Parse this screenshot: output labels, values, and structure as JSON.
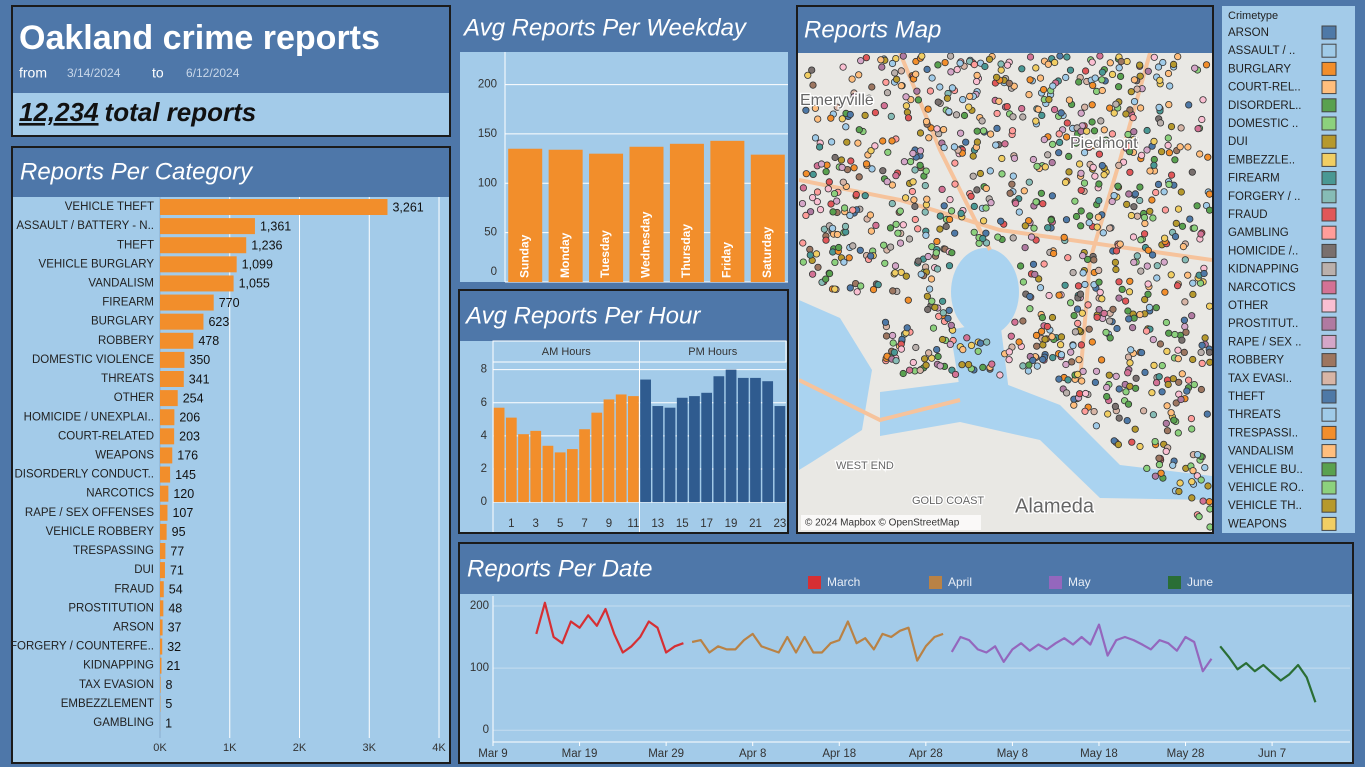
{
  "header": {
    "title": "Oakland crime reports",
    "from_label": "from",
    "from_date": "3/14/2024",
    "to_label": "to",
    "to_date": "6/12/2024",
    "total": "12,234",
    "total_label": "total reports"
  },
  "chart_data": [
    {
      "type": "hbar",
      "title": "Reports Per Category",
      "color": "#f28e2b",
      "categories": [
        "VEHICLE THEFT",
        "ASSAULT / BATTERY - N..",
        "THEFT",
        "VEHICLE BURGLARY",
        "VANDALISM",
        "FIREARM",
        "BURGLARY",
        "ROBBERY",
        "DOMESTIC VIOLENCE",
        "THREATS",
        "OTHER",
        "HOMICIDE / UNEXPLAI..",
        "COURT-RELATED",
        "WEAPONS",
        "DISORDERLY CONDUCT..",
        "NARCOTICS",
        "RAPE / SEX OFFENSES",
        "VEHICLE ROBBERY",
        "TRESPASSING",
        "DUI",
        "FRAUD",
        "PROSTITUTION",
        "ARSON",
        "FORGERY / COUNTERFE..",
        "KIDNAPPING",
        "TAX EVASION",
        "EMBEZZLEMENT",
        "GAMBLING"
      ],
      "values": [
        3261,
        1361,
        1236,
        1099,
        1055,
        770,
        623,
        478,
        350,
        341,
        254,
        206,
        203,
        176,
        145,
        120,
        107,
        95,
        77,
        71,
        54,
        48,
        37,
        32,
        21,
        8,
        5,
        1
      ],
      "value_labels": [
        "3,261",
        "1,361",
        "1,236",
        "1,099",
        "1,055",
        "770",
        "623",
        "478",
        "350",
        "341",
        "254",
        "206",
        "203",
        "176",
        "145",
        "120",
        "107",
        "95",
        "77",
        "71",
        "54",
        "48",
        "37",
        "32",
        "21",
        "8",
        "5",
        "1"
      ],
      "xlim": [
        0,
        4100
      ],
      "xticks": [
        {
          "value": 0,
          "label": "0K"
        },
        {
          "value": 1000,
          "label": "1K"
        },
        {
          "value": 2000,
          "label": "2K"
        },
        {
          "value": 3000,
          "label": "3K"
        },
        {
          "value": 4000,
          "label": "4K"
        }
      ],
      "grid": true
    },
    {
      "type": "bar",
      "title": "Avg Reports Per Weekday",
      "color": "#f28e2b",
      "categories": [
        "Sunday",
        "Monday",
        "Tuesday",
        "Wednesday",
        "Thursday",
        "Friday",
        "Saturday"
      ],
      "values": [
        135,
        134,
        130,
        137,
        140,
        143,
        129
      ],
      "ylim": [
        0,
        233
      ],
      "yticks": [
        0,
        50,
        100,
        150,
        200
      ],
      "grid": true
    },
    {
      "type": "faceted_bar",
      "title": "Avg Reports Per Hour",
      "ylim": [
        -0.6,
        8.4
      ],
      "yticks": [
        0,
        2,
        4,
        6,
        8
      ],
      "grid": true,
      "series": [
        {
          "name": "AM Hours",
          "color": "#f28e2b",
          "categories": [
            null,
            1,
            null,
            3,
            null,
            5,
            null,
            7,
            null,
            9,
            null,
            11
          ],
          "values": [
            5.7,
            5.1,
            4.1,
            4.3,
            3.4,
            3.0,
            3.2,
            4.4,
            5.4,
            6.2,
            6.5,
            6.4
          ]
        },
        {
          "name": "PM Hours",
          "color": "#2f5b8f",
          "categories": [
            null,
            13,
            null,
            15,
            null,
            17,
            null,
            19,
            null,
            21,
            null,
            23
          ],
          "values": [
            7.4,
            5.8,
            5.7,
            6.3,
            6.4,
            6.6,
            7.6,
            8.0,
            7.5,
            7.5,
            7.3,
            5.8
          ]
        }
      ]
    },
    {
      "type": "map",
      "title": "Reports Map",
      "place_labels": [
        "Emeryville",
        "Piedmont",
        "WEST END",
        "GOLD COAST",
        "Alameda"
      ],
      "attribution": "© 2024 Mapbox © OpenStreetMap",
      "legend_title": "Crimetype",
      "legend": [
        {
          "name": "ARSON",
          "color": "#4e79a7"
        },
        {
          "name": "ASSAULT / ..",
          "color": "#a0cbe8"
        },
        {
          "name": "BURGLARY",
          "color": "#f28e2b"
        },
        {
          "name": "COURT-REL..",
          "color": "#ffbe7d"
        },
        {
          "name": "DISORDERL..",
          "color": "#59a14f"
        },
        {
          "name": "DOMESTIC ..",
          "color": "#8cd17d"
        },
        {
          "name": "DUI",
          "color": "#b6992d"
        },
        {
          "name": "EMBEZZLE..",
          "color": "#f1ce63"
        },
        {
          "name": "FIREARM",
          "color": "#499894"
        },
        {
          "name": "FORGERY / ..",
          "color": "#86bcb6"
        },
        {
          "name": "FRAUD",
          "color": "#e15759"
        },
        {
          "name": "GAMBLING",
          "color": "#ff9d9a"
        },
        {
          "name": "HOMICIDE /..",
          "color": "#79706e"
        },
        {
          "name": "KIDNAPPING",
          "color": "#bab0ac"
        },
        {
          "name": "NARCOTICS",
          "color": "#d37295"
        },
        {
          "name": "OTHER",
          "color": "#fabfd2"
        },
        {
          "name": "PROSTITUT..",
          "color": "#b07aa1"
        },
        {
          "name": "RAPE / SEX ..",
          "color": "#d4a6c8"
        },
        {
          "name": "ROBBERY",
          "color": "#9d7660"
        },
        {
          "name": "TAX EVASI..",
          "color": "#d7b5a6"
        },
        {
          "name": "THEFT",
          "color": "#4e79a7"
        },
        {
          "name": "THREATS",
          "color": "#a0cbe8"
        },
        {
          "name": "TRESPASSI..",
          "color": "#f28e2b"
        },
        {
          "name": "VANDALISM",
          "color": "#ffbe7d"
        },
        {
          "name": "VEHICLE BU..",
          "color": "#59a14f"
        },
        {
          "name": "VEHICLE RO..",
          "color": "#8cd17d"
        },
        {
          "name": "VEHICLE TH..",
          "color": "#b6992d"
        },
        {
          "name": "WEAPONS",
          "color": "#f1ce63"
        }
      ]
    },
    {
      "type": "line",
      "title": "Reports Per Date",
      "xlim": [
        "03-09",
        "06-16"
      ],
      "ylim": [
        -19,
        216
      ],
      "yticks": [
        0,
        100,
        200
      ],
      "grid": true,
      "xticks": [
        {
          "value": "03-09",
          "label": "Mar 9"
        },
        {
          "value": "03-19",
          "label": "Mar 19"
        },
        {
          "value": "03-29",
          "label": "Mar 29"
        },
        {
          "value": "04-08",
          "label": "Apr 8"
        },
        {
          "value": "04-18",
          "label": "Apr 18"
        },
        {
          "value": "04-28",
          "label": "Apr 28"
        },
        {
          "value": "05-08",
          "label": "May 8"
        },
        {
          "value": "05-18",
          "label": "May 18"
        },
        {
          "value": "05-28",
          "label": "May 28"
        },
        {
          "value": "06-07",
          "label": "Jun 7"
        }
      ],
      "series": [
        {
          "name": "March",
          "color": "#d62f33",
          "x": [
            "03-14",
            "03-15",
            "03-16",
            "03-17",
            "03-18",
            "03-19",
            "03-20",
            "03-21",
            "03-22",
            "03-23",
            "03-24",
            "03-25",
            "03-26",
            "03-27",
            "03-28",
            "03-29",
            "03-30",
            "03-31"
          ],
          "values": [
            155,
            205,
            150,
            140,
            175,
            165,
            185,
            168,
            195,
            155,
            125,
            135,
            150,
            175,
            165,
            125,
            135,
            140
          ]
        },
        {
          "name": "April",
          "color": "#b98245",
          "x": [
            "04-01",
            "04-02",
            "04-03",
            "04-04",
            "04-05",
            "04-06",
            "04-07",
            "04-08",
            "04-09",
            "04-10",
            "04-11",
            "04-12",
            "04-13",
            "04-14",
            "04-15",
            "04-16",
            "04-17",
            "04-18",
            "04-19",
            "04-20",
            "04-21",
            "04-22",
            "04-23",
            "04-24",
            "04-25",
            "04-26",
            "04-27",
            "04-28",
            "04-29",
            "04-30"
          ],
          "values": [
            142,
            145,
            125,
            135,
            130,
            130,
            145,
            155,
            135,
            130,
            125,
            150,
            125,
            150,
            125,
            125,
            140,
            145,
            175,
            140,
            148,
            130,
            155,
            150,
            160,
            165,
            112,
            135,
            150,
            155
          ]
        },
        {
          "name": "May",
          "color": "#9467bd",
          "x": [
            "05-01",
            "05-02",
            "05-03",
            "05-04",
            "05-05",
            "05-06",
            "05-07",
            "05-08",
            "05-09",
            "05-10",
            "05-11",
            "05-12",
            "05-13",
            "05-14",
            "05-15",
            "05-16",
            "05-17",
            "05-18",
            "05-19",
            "05-20",
            "05-21",
            "05-22",
            "05-23",
            "05-24",
            "05-25",
            "05-26",
            "05-27",
            "05-28",
            "05-29",
            "05-30",
            "05-31"
          ],
          "values": [
            126,
            150,
            145,
            130,
            125,
            135,
            110,
            130,
            140,
            128,
            138,
            130,
            140,
            148,
            138,
            150,
            138,
            170,
            120,
            145,
            150,
            145,
            138,
            130,
            145,
            140,
            128,
            150,
            142,
            95,
            115
          ]
        },
        {
          "name": "June",
          "color": "#2a6e35",
          "x": [
            "06-01",
            "06-02",
            "06-03",
            "06-04",
            "06-05",
            "06-06",
            "06-07",
            "06-08",
            "06-09",
            "06-10",
            "06-11",
            "06-12"
          ],
          "values": [
            135,
            118,
            98,
            108,
            95,
            105,
            92,
            80,
            90,
            105,
            85,
            45
          ]
        }
      ]
    }
  ]
}
